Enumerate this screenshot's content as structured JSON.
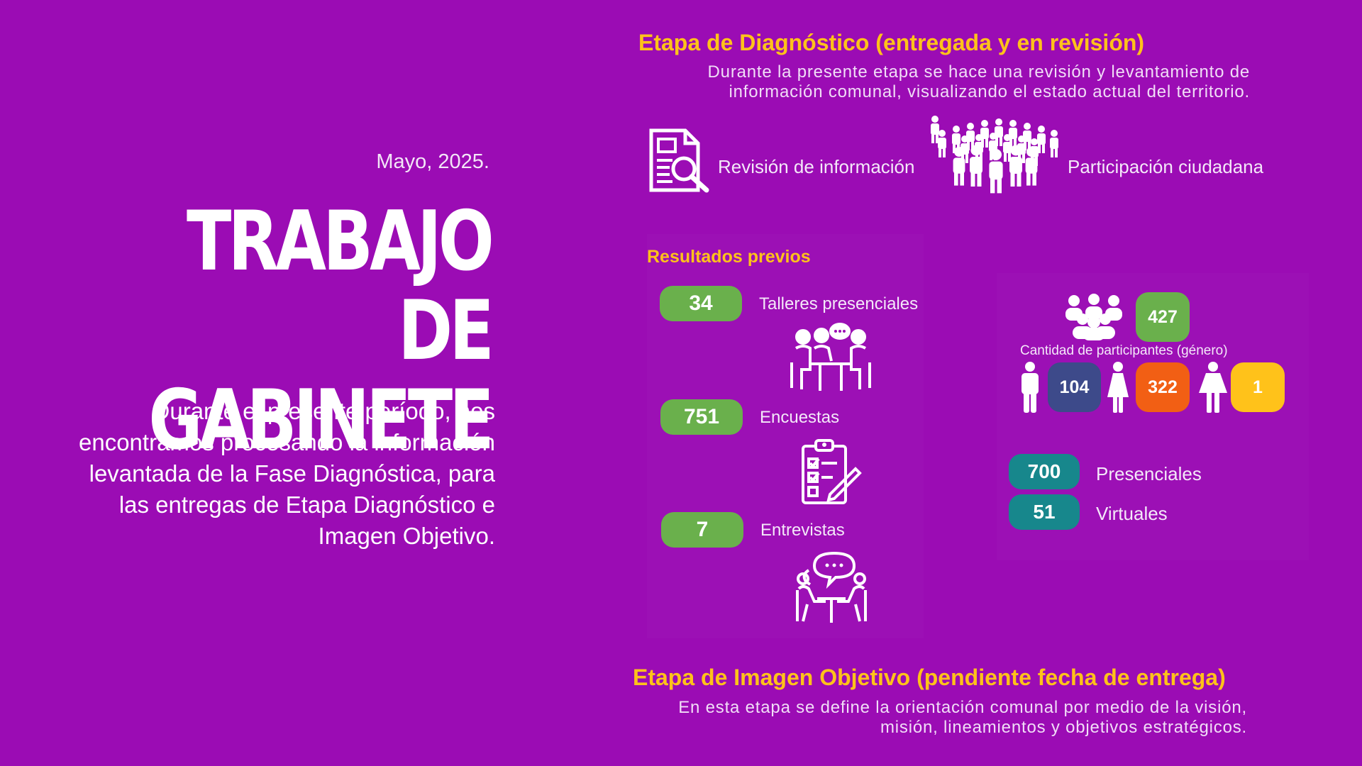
{
  "left": {
    "date": "Mayo, 2025.",
    "title_line1": "TRABAJO DE",
    "title_line2": "GABINETE",
    "intro": "Durante el presente período, nos encontramos procesando la información levantada de la Fase Diagnóstica, para las entregas de Etapa Diagnóstico e Imagen Objetivo."
  },
  "diagnostico": {
    "heading": "Etapa de Diagnóstico (entregada y en revisión)",
    "description": "Durante la presente etapa se hace una revisión y levantamiento de información comunal, visualizando el estado actual del territorio.",
    "items": [
      {
        "label": "Revisión de información",
        "icon": "document-search-icon"
      },
      {
        "label": "Participación ciudadana",
        "icon": "crowd-icon"
      }
    ]
  },
  "resultados": {
    "heading": "Resultados previos",
    "talleres": {
      "value": "34",
      "label": "Talleres presenciales"
    },
    "encuestas": {
      "value": "751",
      "label": "Encuestas"
    },
    "entrevistas": {
      "value": "7",
      "label": "Entrevistas"
    },
    "participantes_total": "427",
    "participantes_label": "Cantidad de participantes (género)",
    "genero": [
      {
        "value": "104",
        "icon": "man-icon"
      },
      {
        "value": "322",
        "icon": "woman-icon"
      },
      {
        "value": "1",
        "icon": "person-icon"
      }
    ],
    "presenciales": {
      "value": "700",
      "label": "Presenciales"
    },
    "virtuales": {
      "value": "51",
      "label": "Virtuales"
    }
  },
  "imagen_objetivo": {
    "heading": "Etapa de Imagen Objetivo (pendiente fecha de entrega)",
    "description": "En esta etapa se define la orientación comunal por medio de la visión, misión, lineamientos y objetivos estratégicos."
  },
  "colors": {
    "background": "#9b0cb4",
    "accent_yellow": "#ffc21a",
    "green": "#6ab04c",
    "teal": "#17878c",
    "navy": "#3d4a8a",
    "orange": "#f25f14"
  }
}
